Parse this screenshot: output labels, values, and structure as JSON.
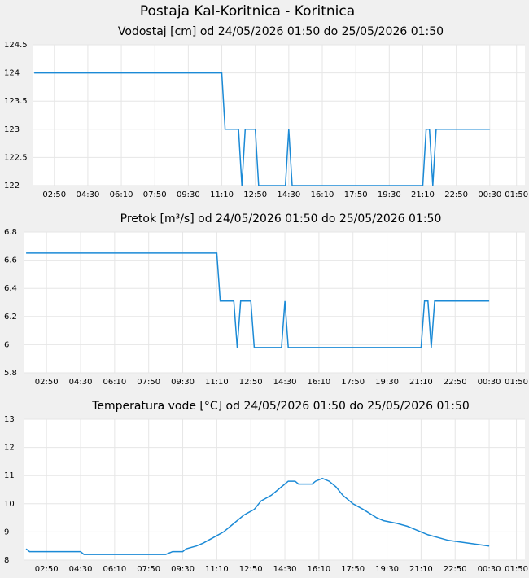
{
  "title": "Postaja Kal-Koritnica - Koritnica",
  "chart_data": [
    {
      "type": "line",
      "title": "Vodostaj [cm] od 24/05/2026 01:50 do 25/05/2026 01:50",
      "color": "#1b8ad6",
      "grid": true,
      "x": [
        "01:50",
        "11:10",
        "11:20",
        "12:00",
        "12:10",
        "12:20",
        "12:50",
        "13:00",
        "14:20",
        "14:30",
        "14:40",
        "21:10",
        "21:20",
        "21:30",
        "21:40",
        "21:50",
        "00:30"
      ],
      "values": [
        124,
        124,
        123,
        123,
        122,
        123,
        123,
        122,
        122,
        123,
        122,
        122,
        123,
        123,
        122,
        123,
        123
      ],
      "xlim": [
        "01:45",
        "02:15"
      ],
      "xticks": [
        "02:50",
        "04:30",
        "06:10",
        "07:50",
        "09:30",
        "11:10",
        "12:50",
        "14:30",
        "16:10",
        "17:50",
        "19:30",
        "21:10",
        "22:50",
        "00:30",
        "01:50"
      ],
      "ylim": [
        122,
        124.5
      ],
      "yticks": [
        122,
        122.5,
        123,
        123.5,
        124,
        124.5
      ]
    },
    {
      "type": "line",
      "title": "Pretok [m³/s] od 24/05/2026 01:50 do 25/05/2026 01:50",
      "color": "#1b8ad6",
      "grid": true,
      "x": [
        "01:50",
        "11:10",
        "11:20",
        "12:00",
        "12:10",
        "12:20",
        "12:50",
        "13:00",
        "14:20",
        "14:30",
        "14:40",
        "21:10",
        "21:20",
        "21:30",
        "21:40",
        "21:50",
        "00:30"
      ],
      "values": [
        6.65,
        6.65,
        6.31,
        6.31,
        5.98,
        6.31,
        6.31,
        5.98,
        5.98,
        6.31,
        5.98,
        5.98,
        6.31,
        6.31,
        5.98,
        6.31,
        6.31
      ],
      "xlim": [
        "01:45",
        "02:15"
      ],
      "xticks": [
        "02:50",
        "04:30",
        "06:10",
        "07:50",
        "09:30",
        "11:10",
        "12:50",
        "14:30",
        "16:10",
        "17:50",
        "19:30",
        "21:10",
        "22:50",
        "00:30",
        "01:50"
      ],
      "ylim": [
        5.8,
        6.8
      ],
      "yticks": [
        5.8,
        6,
        6.2,
        6.4,
        6.6,
        6.8
      ]
    },
    {
      "type": "line",
      "title": "Temperatura vode [°C] od 24/05/2026 01:50 do 25/05/2026 01:50",
      "color": "#1b8ad6",
      "grid": true,
      "x": [
        "01:50",
        "02:00",
        "04:30",
        "04:40",
        "08:40",
        "09:00",
        "09:30",
        "09:40",
        "10:10",
        "10:30",
        "11:00",
        "11:30",
        "12:00",
        "12:30",
        "13:00",
        "13:20",
        "13:50",
        "14:20",
        "14:40",
        "15:00",
        "15:10",
        "15:50",
        "16:00",
        "16:20",
        "16:40",
        "17:00",
        "17:20",
        "17:50",
        "18:20",
        "19:00",
        "19:20",
        "20:00",
        "20:30",
        "20:50",
        "21:10",
        "21:30",
        "22:00",
        "22:30",
        "23:30",
        "00:30"
      ],
      "values": [
        8.4,
        8.3,
        8.3,
        8.2,
        8.2,
        8.3,
        8.3,
        8.4,
        8.5,
        8.6,
        8.8,
        9.0,
        9.3,
        9.6,
        9.8,
        10.1,
        10.3,
        10.6,
        10.8,
        10.8,
        10.7,
        10.7,
        10.8,
        10.9,
        10.8,
        10.6,
        10.3,
        10.0,
        9.8,
        9.5,
        9.4,
        9.3,
        9.2,
        9.1,
        9.0,
        8.9,
        8.8,
        8.7,
        8.6,
        8.5
      ],
      "xlim": [
        "01:45",
        "02:15"
      ],
      "xticks": [
        "02:50",
        "04:30",
        "06:10",
        "07:50",
        "09:30",
        "11:10",
        "12:50",
        "14:30",
        "16:10",
        "17:50",
        "19:30",
        "21:10",
        "22:50",
        "00:30",
        "01:50"
      ],
      "ylim": [
        8,
        13
      ],
      "yticks": [
        8,
        9,
        10,
        11,
        12,
        13
      ]
    }
  ]
}
